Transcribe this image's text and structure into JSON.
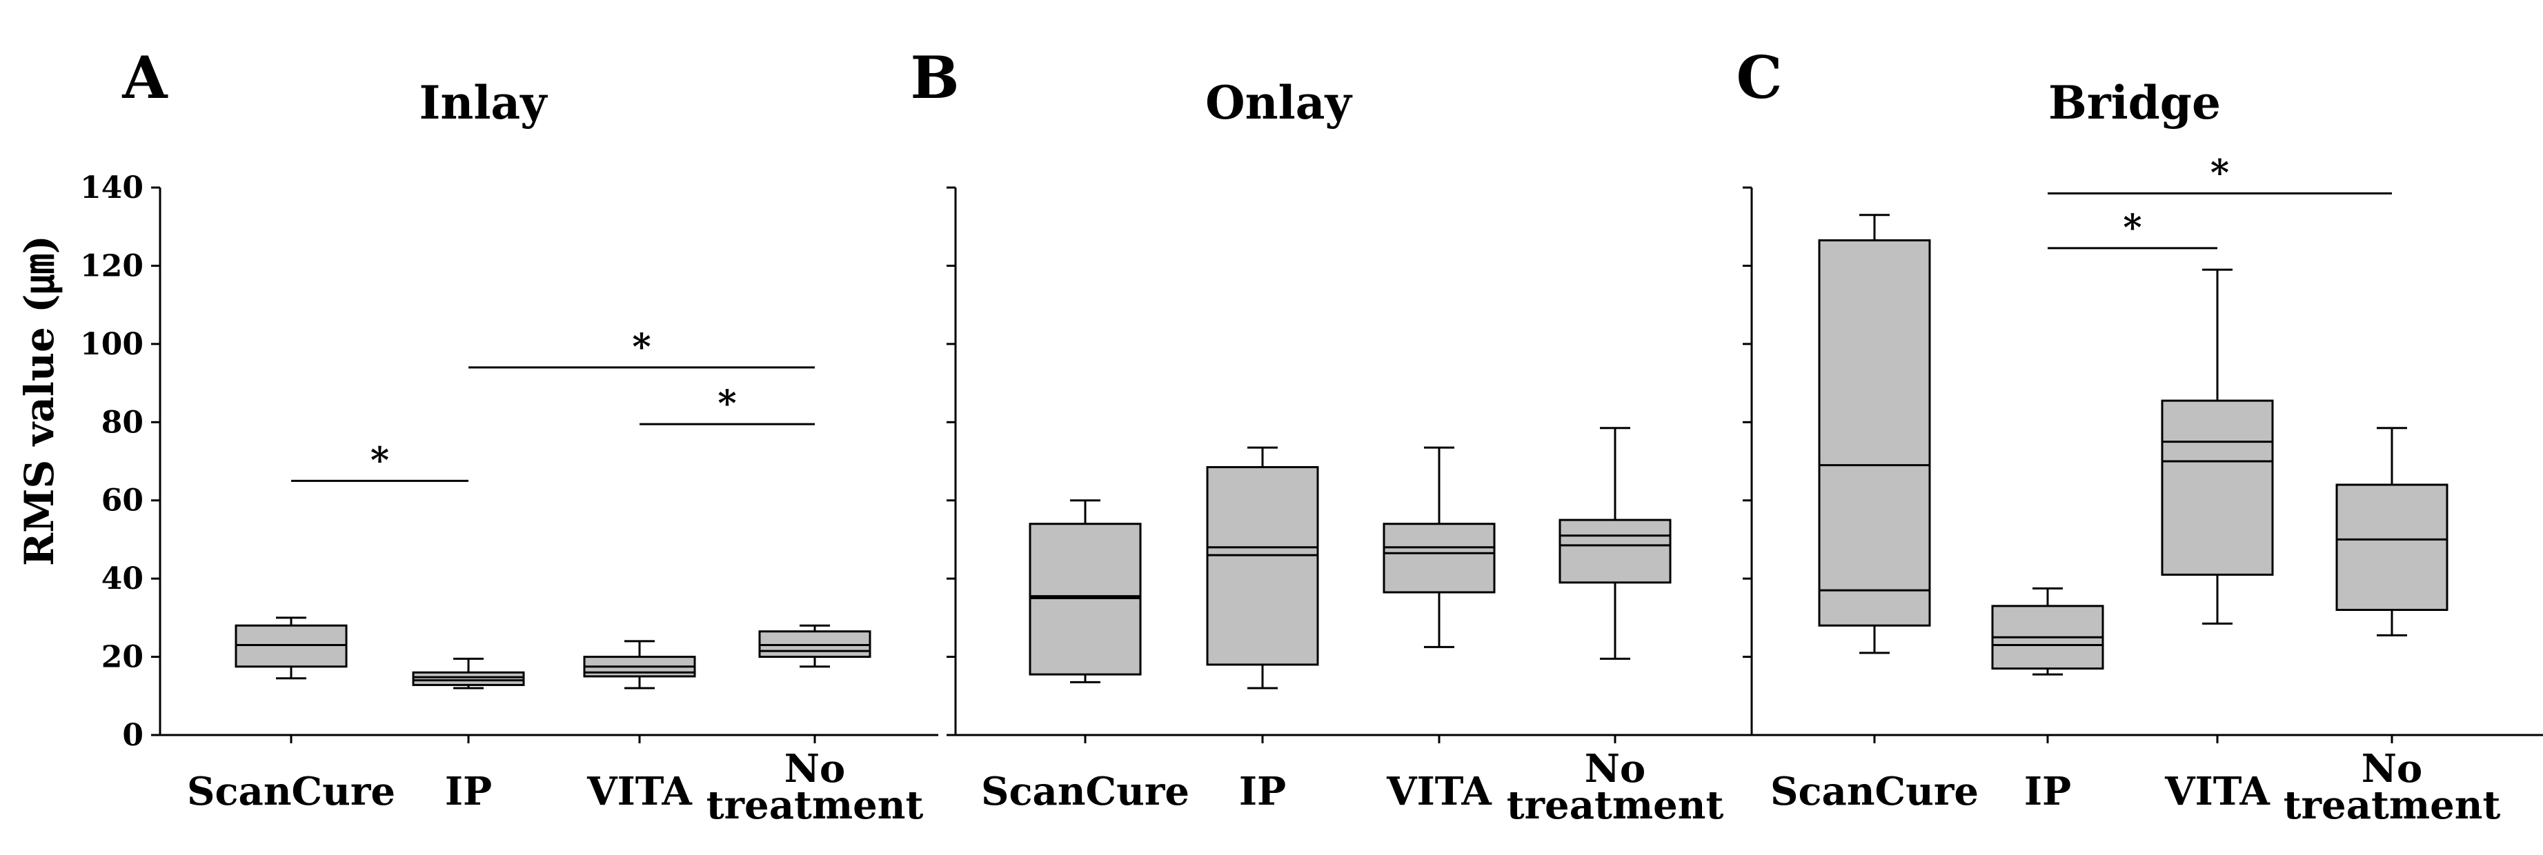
{
  "chart_data": {
    "type": "box",
    "ylabel": "RMS value (㎛)",
    "ylim": [
      0,
      140
    ],
    "yticks": [
      0,
      20,
      40,
      60,
      80,
      100,
      120,
      140
    ],
    "categories": [
      "ScanCure",
      "IP",
      "VITA",
      "No treatment"
    ],
    "category_lines": [
      [
        "ScanCure"
      ],
      [
        "IP"
      ],
      [
        "VITA"
      ],
      [
        "No",
        "treatment"
      ]
    ],
    "box_fill": "#c0c0c0",
    "panels": [
      {
        "letter": "A",
        "title": "Inlay",
        "boxes": [
          {
            "category": "ScanCure",
            "whisker_low": 14.5,
            "q1": 17.5,
            "median": 23,
            "mean": null,
            "q3": 28,
            "whisker_high": 30
          },
          {
            "category": "IP",
            "whisker_low": 12,
            "q1": 12.8,
            "median": 14,
            "mean": 14.8,
            "q3": 16,
            "whisker_high": 19.5
          },
          {
            "category": "VITA",
            "whisker_low": 12,
            "q1": 15,
            "median": 16,
            "mean": 17.5,
            "q3": 20,
            "whisker_high": 24
          },
          {
            "category": "No treatment",
            "whisker_low": 17.5,
            "q1": 20,
            "median": 21.5,
            "mean": 23,
            "q3": 26.5,
            "whisker_high": 28
          }
        ],
        "significance": [
          {
            "from": "ScanCure",
            "to": "IP",
            "y": 65,
            "label": "*"
          },
          {
            "from": "IP",
            "to": "No treatment",
            "y": 94,
            "label": "*"
          },
          {
            "from": "VITA",
            "to": "No treatment",
            "y": 79.5,
            "label": "*"
          }
        ]
      },
      {
        "letter": "B",
        "title": "Onlay",
        "boxes": [
          {
            "category": "ScanCure",
            "whisker_low": 13.5,
            "q1": 15.5,
            "median": 35,
            "mean": 35.5,
            "q3": 54,
            "whisker_high": 60
          },
          {
            "category": "IP",
            "whisker_low": 12,
            "q1": 18,
            "median": 46,
            "mean": 48,
            "q3": 68.5,
            "whisker_high": 73.5
          },
          {
            "category": "VITA",
            "whisker_low": 22.5,
            "q1": 36.5,
            "median": 46.5,
            "mean": 48,
            "q3": 54,
            "whisker_high": 73.5
          },
          {
            "category": "No treatment",
            "whisker_low": 19.5,
            "q1": 39,
            "median": 48.5,
            "mean": 51,
            "q3": 55,
            "whisker_high": 78.5
          }
        ],
        "significance": []
      },
      {
        "letter": "C",
        "title": "Bridge",
        "boxes": [
          {
            "category": "ScanCure",
            "whisker_low": 21,
            "q1": 28,
            "median": 37,
            "mean": 69,
            "q3": 126.5,
            "whisker_high": 133
          },
          {
            "category": "IP",
            "whisker_low": 15.5,
            "q1": 17,
            "median": 23,
            "mean": 25,
            "q3": 33,
            "whisker_high": 37.5
          },
          {
            "category": "VITA",
            "whisker_low": 28.5,
            "q1": 41,
            "median": 70,
            "mean": 75,
            "q3": 85.5,
            "whisker_high": 119
          },
          {
            "category": "No treatment",
            "whisker_low": 25.5,
            "q1": 32,
            "median": 50,
            "mean": null,
            "q3": 64,
            "whisker_high": 78.5
          }
        ],
        "significance": [
          {
            "from": "IP",
            "to": "VITA",
            "y": 124.5,
            "label": "*"
          },
          {
            "from": "IP",
            "to": "No treatment",
            "y": 138.5,
            "label": "*"
          }
        ]
      }
    ]
  }
}
